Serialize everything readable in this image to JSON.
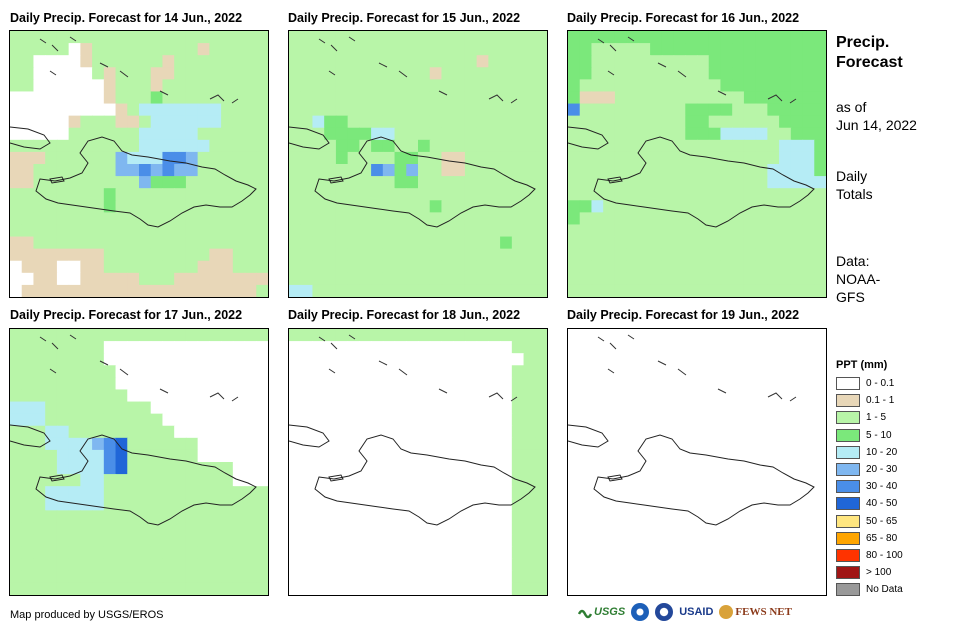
{
  "panels": [
    {
      "title": "Daily Precip. Forecast for 14 Jun., 2022"
    },
    {
      "title": "Daily Precip. Forecast for 15 Jun., 2022"
    },
    {
      "title": "Daily Precip. Forecast for 16 Jun., 2022"
    },
    {
      "title": "Daily Precip. Forecast for 17 Jun., 2022"
    },
    {
      "title": "Daily Precip. Forecast for 18 Jun., 2022"
    },
    {
      "title": "Daily Precip. Forecast for 19 Jun., 2022"
    }
  ],
  "sidebar": {
    "title_line1": "Precip.",
    "title_line2": "Forecast",
    "asof_line1": "as of",
    "asof_line2": "Jun 14, 2022",
    "daily_line1": "Daily",
    "daily_line2": "Totals",
    "data_line1": "Data:",
    "data_line2": "NOAA-",
    "data_line3": "GFS"
  },
  "legend": {
    "title": "PPT (mm)",
    "items": [
      {
        "label": "0 - 0.1",
        "color": "#ffffff"
      },
      {
        "label": "0.1 - 1",
        "color": "#e8d7b8"
      },
      {
        "label": "1 - 5",
        "color": "#b8f5a8"
      },
      {
        "label": "5 - 10",
        "color": "#7be87b"
      },
      {
        "label": "10 - 20",
        "color": "#b5ecf5"
      },
      {
        "label": "20 - 30",
        "color": "#7fb7f0"
      },
      {
        "label": "30 - 40",
        "color": "#4a8ee8"
      },
      {
        "label": "40 - 50",
        "color": "#2066d8"
      },
      {
        "label": "50 - 65",
        "color": "#ffe680"
      },
      {
        "label": "65 - 80",
        "color": "#ffa500"
      },
      {
        "label": "80 - 100",
        "color": "#ff3300"
      },
      {
        "label": "> 100",
        "color": "#a01515"
      },
      {
        "label": "No Data",
        "color": "#999999"
      }
    ]
  },
  "credit": "Map produced by USGS/EROS",
  "logos": {
    "usgs": "USGS",
    "usaid": "USAID",
    "fews": "FEWS NET"
  },
  "map_grids": {
    "palette": [
      "#ffffff",
      "#e8d7b8",
      "#b8f5a8",
      "#7be87b",
      "#b5ecf5",
      "#7fb7f0",
      "#4a8ee8",
      "#2066d8"
    ],
    "day1": [
      "2222222222222222222222",
      "2222201222222222122222",
      "2200001222222122222222",
      "2200000212221122222222",
      "2200000012221222222222",
      "0000000012223222222222",
      "0000000001244444442222",
      "0000012221124444442222",
      "0000022222244444222222",
      "2222222222244444422222",
      "1112222225444665222222",
      "1122222225565655222222",
      "1122222222253332222222",
      "2222222232222222222222",
      "2222222232222222222222",
      "2222222222222222222222",
      "2222222222222222222222",
      "1122222222222222222222",
      "1111111122222222211222",
      "0111001122222222111222",
      "0011001111122211111111",
      "0111111111111111111112"
    ],
    "day2": [
      "2222222222222222222222",
      "2222222222222222222222",
      "2222222222222222122222",
      "2222222222221222222222",
      "2222222222222222222222",
      "2222222222222222222222",
      "2222222222222222222222",
      "2243322222222222222222",
      "2223333442222222222222",
      "2222332332232222222222",
      "2222322223322112222222",
      "2222222653522112222222",
      "2222222223322222222222",
      "2222222222222222222222",
      "2222222222223222222222",
      "2222222222222222222222",
      "2222222222222222222222",
      "2222222222222222223222",
      "2222222222222222222222",
      "2222222222222222222222",
      "2222222222222222222222",
      "4422222222222222222222"
    ],
    "day3": [
      "3333333333333333333333",
      "3322222333333333333333",
      "3322222222223333333333",
      "3322222222223333333333",
      "3222222222222333333333",
      "3111222222222223333333",
      "6222222222333322233333",
      "2222222222332222223333",
      "2222222222333444422333",
      "2222222222222222224443",
      "2222222222222222224443",
      "2222222222222222244443",
      "2222222222222222244444",
      "2222222222222222222222",
      "3342222222222222222222",
      "3222222222222222222222",
      "2222222222222222222222",
      "2222222222222222222222",
      "2222222222222222222222",
      "2222222222222222222222",
      "2222222222222222222222",
      "2222222222222222222222"
    ],
    "day4": [
      "2222222222222222222222",
      "2222222200000000000000",
      "2222222200000000000000",
      "2222222220000000000000",
      "2222222220000000000000",
      "2222222222000000000000",
      "4442222222220000000000",
      "4442222222222000000000",
      "2224422222222200000000",
      "2224444567222222000000",
      "2222444467222222000000",
      "2222444467222222222000",
      "2222224422222222222000",
      "2224444422222222222222",
      "2224444422222222222222",
      "2222222222222222222222",
      "2222222222222222222222",
      "2222222222222222222222",
      "2222222222222222222222",
      "2222222222222222222222",
      "2222222222222222222222",
      "2222222222222222222222"
    ],
    "day5": [
      "2222222222222222222222",
      "0000000000000000000222",
      "0000000000000000000022",
      "0000000000000000000222",
      "0000000000000000000222",
      "0000000000000000000222",
      "0000000000000000000222",
      "0000000000000000000222",
      "0000000000000000000222",
      "0000000000000000000222",
      "0000000000000000000222",
      "0000000000000000000222",
      "0000000000000000000222",
      "0000000000000000000222",
      "0000000000000000000222",
      "0000000000000000000222",
      "0000000000000000000222",
      "0000000000000000000222",
      "0000000000000000000222",
      "0000000000000000000222",
      "0000000000000000000222",
      "0000000000000000000222"
    ],
    "day6": [
      "0000000000000000000000",
      "0000000000000000000000",
      "0000000000000000000000",
      "0000000000000000000000",
      "0000000000000000000000",
      "0000000000000000000000",
      "0000000000000000000000",
      "0000000000000000000000",
      "0000000000000000000000",
      "0000000000000000000000",
      "0000000000000000000000",
      "0000000000000000000000",
      "0000000000000000000000",
      "0000000000000000000000",
      "0000000000000000000000",
      "0000000000000000000000",
      "0000000000000000000000",
      "0000000000000000000000",
      "0000000000000000000000",
      "0000000000000000000000",
      "0000000000000000000000",
      "0000000000000000000000"
    ]
  }
}
